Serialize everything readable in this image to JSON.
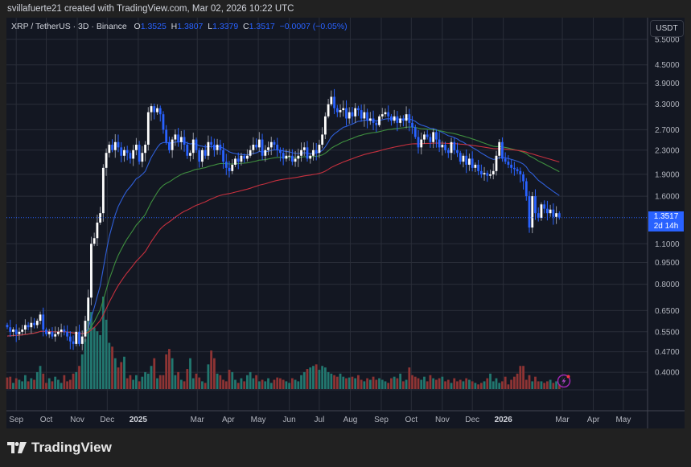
{
  "credit": "svillafuerte21 created with TradingView.com, Mar 02, 2026 10:22 UTC",
  "legend": {
    "symbol": "XRP / TetherUS · 3D · Binance",
    "o_label": "O",
    "o": "1.3525",
    "h_label": "H",
    "h": "1.3807",
    "l_label": "L",
    "l": "1.3379",
    "c_label": "C",
    "c": "1.3517",
    "change": "−0.0007 (−0.05%)"
  },
  "currency_button": "USDT",
  "last_price": {
    "price": "1.3517",
    "countdown": "2d 14h"
  },
  "logo_text": "TradingView",
  "colors": {
    "up": "#ffffff",
    "down": "#2962ff",
    "vol_up": "#22776f",
    "vol_down": "#8e3434",
    "ma_blue": "#2f5fd8",
    "ma_green": "#3f8f3f",
    "ma_red": "#c6303e",
    "background": "#131722",
    "grid": "#2a2e39"
  },
  "icons": {
    "alert": "lightning-alert-icon",
    "logo": "tradingview-logo-icon"
  },
  "chart_data": {
    "type": "candlestick",
    "interval": "3D",
    "start_date": "2024-08-23",
    "scale": "log",
    "ylim": [
      0.33,
      6.0
    ],
    "grid": true,
    "price_ticks": [
      {
        "value": 5.5,
        "label": "5.5000"
      },
      {
        "value": 4.5,
        "label": "4.5000"
      },
      {
        "value": 3.9,
        "label": "3.9000"
      },
      {
        "value": 3.3,
        "label": "3.3000"
      },
      {
        "value": 2.7,
        "label": "2.7000"
      },
      {
        "value": 2.3,
        "label": "2.3000"
      },
      {
        "value": 1.9,
        "label": "1.9000"
      },
      {
        "value": 1.6,
        "label": "1.6000"
      },
      {
        "value": 1.1,
        "label": "1.1000"
      },
      {
        "value": 0.95,
        "label": "0.9500"
      },
      {
        "value": 0.8,
        "label": "0.8000"
      },
      {
        "value": 0.65,
        "label": "0.6500"
      },
      {
        "value": 0.55,
        "label": "0.5500"
      },
      {
        "value": 0.47,
        "label": "0.4700"
      },
      {
        "value": 0.4,
        "label": "0.4000"
      }
    ],
    "time_ticks": [
      {
        "date": "2024-09-01",
        "label": "Sep"
      },
      {
        "date": "2024-10-01",
        "label": "Oct"
      },
      {
        "date": "2024-11-01",
        "label": "Nov"
      },
      {
        "date": "2024-12-01",
        "label": "Dec"
      },
      {
        "date": "2025-01-01",
        "label": "2025",
        "bold": true
      },
      {
        "date": "2025-03-01",
        "label": "Mar"
      },
      {
        "date": "2025-04-01",
        "label": "Apr"
      },
      {
        "date": "2025-05-01",
        "label": "May"
      },
      {
        "date": "2025-06-01",
        "label": "Jun"
      },
      {
        "date": "2025-07-01",
        "label": "Jul"
      },
      {
        "date": "2025-08-01",
        "label": "Aug"
      },
      {
        "date": "2025-09-01",
        "label": "Sep"
      },
      {
        "date": "2025-10-01",
        "label": "Oct"
      },
      {
        "date": "2025-11-01",
        "label": "Nov"
      },
      {
        "date": "2025-12-01",
        "label": "Dec"
      },
      {
        "date": "2026-01-01",
        "label": "2026",
        "bold": true
      },
      {
        "date": "2026-03-01",
        "label": "Mar"
      },
      {
        "date": "2026-04-01",
        "label": "Apr"
      },
      {
        "date": "2026-05-01",
        "label": "May"
      }
    ],
    "closes": [
      0.57,
      0.55,
      0.56,
      0.54,
      0.55,
      0.56,
      0.58,
      0.57,
      0.59,
      0.58,
      0.6,
      0.63,
      0.56,
      0.54,
      0.55,
      0.53,
      0.54,
      0.55,
      0.56,
      0.55,
      0.53,
      0.51,
      0.5,
      0.55,
      0.5,
      0.53,
      0.6,
      0.72,
      1.1,
      1.15,
      1.3,
      1.4,
      2.0,
      2.25,
      2.4,
      2.3,
      2.45,
      2.35,
      2.2,
      2.3,
      2.25,
      2.15,
      2.3,
      2.4,
      2.1,
      2.25,
      2.4,
      3.1,
      3.25,
      3.1,
      3.2,
      3.05,
      2.7,
      2.45,
      2.3,
      2.5,
      2.6,
      2.45,
      2.55,
      2.4,
      2.2,
      2.25,
      2.5,
      2.3,
      2.1,
      2.3,
      2.2,
      2.45,
      2.4,
      2.3,
      2.4,
      2.3,
      2.1,
      2.0,
      1.95,
      2.05,
      2.15,
      2.1,
      2.2,
      2.15,
      2.2,
      2.3,
      2.4,
      2.35,
      2.5,
      2.2,
      2.3,
      2.35,
      2.45,
      2.4,
      2.3,
      2.25,
      2.15,
      2.2,
      2.2,
      2.1,
      2.15,
      2.2,
      2.3,
      2.35,
      2.15,
      2.2,
      2.3,
      2.25,
      2.4,
      2.6,
      3.0,
      3.3,
      3.5,
      3.2,
      3.1,
      3.15,
      3.2,
      2.95,
      3.1,
      3.0,
      3.2,
      3.15,
      2.95,
      3.1,
      2.9,
      2.95,
      2.85,
      2.8,
      3.0,
      3.05,
      3.1,
      3.0,
      2.9,
      3.0,
      2.85,
      2.95,
      2.9,
      3.05,
      2.85,
      2.75,
      2.55,
      2.35,
      2.5,
      2.6,
      2.55,
      2.45,
      2.65,
      2.5,
      2.35,
      2.4,
      2.3,
      2.25,
      2.45,
      2.3,
      2.25,
      2.1,
      2.2,
      2.05,
      2.15,
      2.0,
      2.05,
      1.95,
      1.9,
      1.92,
      1.88,
      1.9,
      1.95,
      2.2,
      2.45,
      2.15,
      2.1,
      2.05,
      2.0,
      1.98,
      1.95,
      1.9,
      1.8,
      1.6,
      1.25,
      1.6,
      1.4,
      1.35,
      1.5,
      1.45,
      1.4,
      1.44,
      1.36,
      1.4,
      1.3517
    ],
    "volume_relative": [
      15,
      16,
      8,
      14,
      12,
      10,
      18,
      10,
      14,
      12,
      22,
      30,
      20,
      8,
      14,
      10,
      16,
      12,
      8,
      18,
      10,
      12,
      20,
      22,
      30,
      45,
      65,
      110,
      100,
      80,
      75,
      70,
      120,
      90,
      60,
      55,
      40,
      28,
      35,
      42,
      14,
      18,
      12,
      18,
      10,
      16,
      22,
      20,
      30,
      40,
      14,
      18,
      18,
      45,
      52,
      40,
      18,
      22,
      12,
      10,
      26,
      40,
      14,
      20,
      15,
      10,
      8,
      32,
      50,
      40,
      20,
      18,
      12,
      10,
      25,
      22,
      12,
      8,
      14,
      10,
      18,
      22,
      14,
      18,
      10,
      12,
      10,
      14,
      8,
      12,
      15,
      14,
      12,
      10,
      8,
      14,
      12,
      10,
      18,
      22,
      26,
      28,
      30,
      32,
      25,
      30,
      28,
      22,
      20,
      18,
      16,
      20,
      16,
      14,
      15,
      16,
      14,
      18,
      12,
      10,
      14,
      12,
      16,
      12,
      14,
      12,
      10,
      8,
      14,
      16,
      14,
      20,
      10,
      12,
      28,
      18,
      16,
      14,
      12,
      16,
      10,
      18,
      14,
      12,
      14,
      16,
      10,
      12,
      8,
      14,
      10,
      12,
      10,
      14,
      12,
      10,
      8,
      6,
      8,
      10,
      14,
      20,
      10,
      14,
      8,
      10,
      16,
      6,
      12,
      16,
      20,
      30,
      30,
      12,
      18,
      10,
      16,
      10,
      10,
      8,
      10,
      12,
      8,
      10,
      6
    ]
  }
}
